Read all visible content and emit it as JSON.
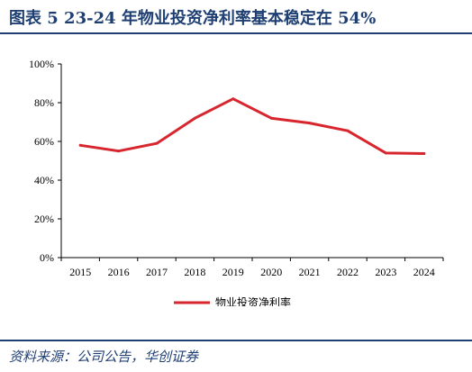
{
  "header": {
    "title": "图表 5   23-24 年物业投资净利率基本稳定在 54%"
  },
  "footer": {
    "source": "资料来源：公司公告，华创证券"
  },
  "colors": {
    "accent": "#1f3f73",
    "series": "#d7262e"
  },
  "chart_data": {
    "type": "line",
    "title": "",
    "xlabel": "",
    "ylabel": "",
    "x": [
      "2015",
      "2016",
      "2017",
      "2018",
      "2019",
      "2020",
      "2021",
      "2022",
      "2023",
      "2024"
    ],
    "series": [
      {
        "name": "物业投资净利率",
        "values": [
          58,
          55,
          59,
          72,
          82,
          72,
          69.5,
          65.5,
          54,
          53.7
        ]
      }
    ],
    "ylim": [
      0,
      100
    ],
    "yticks": [
      0,
      20,
      40,
      60,
      80,
      100
    ],
    "ytick_labels": [
      "0%",
      "20%",
      "40%",
      "60%",
      "80%",
      "100%"
    ],
    "grid": false,
    "legend": "bottom-center"
  }
}
